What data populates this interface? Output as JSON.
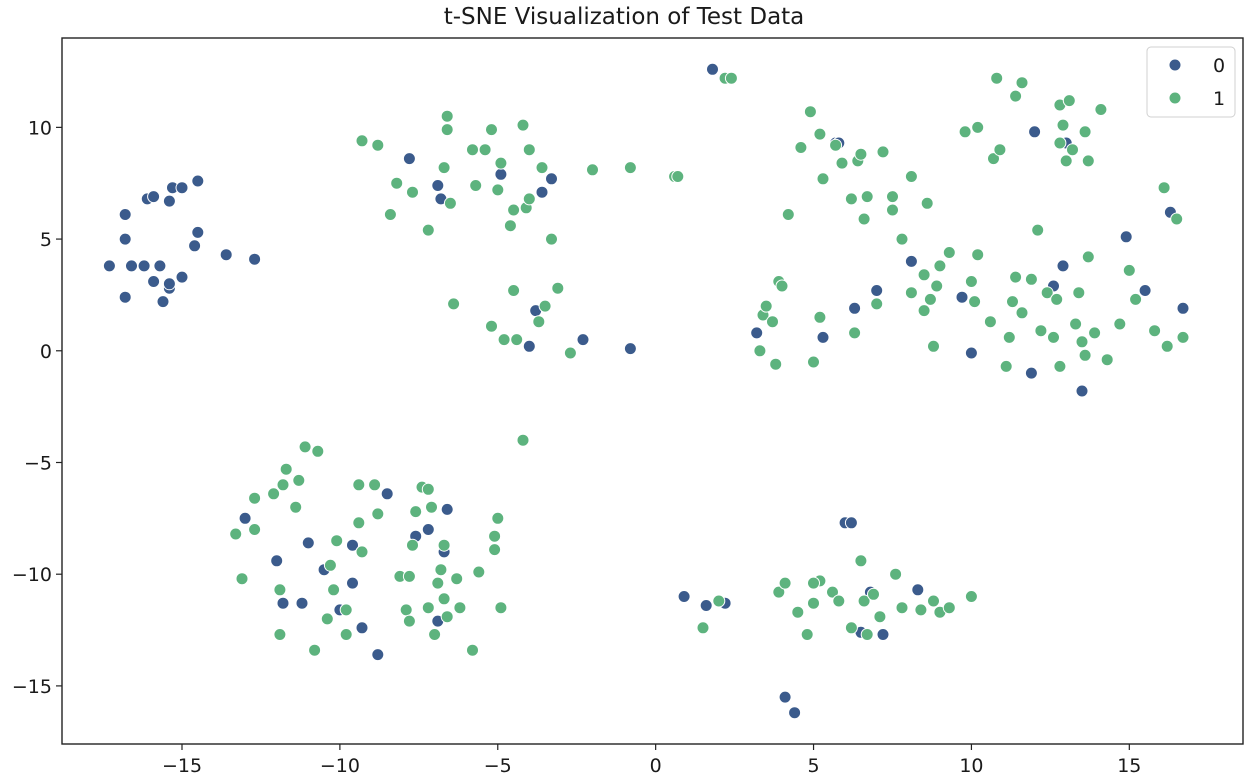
{
  "chart_data": {
    "type": "scatter",
    "title": "t-SNE Visualization of Test Data",
    "xlabel": "",
    "ylabel": "",
    "xlim": [
      -18.8,
      18.6
    ],
    "ylim": [
      -17.6,
      14.0
    ],
    "xticks": [
      -15,
      -10,
      -5,
      0,
      5,
      10,
      15
    ],
    "yticks": [
      -15,
      -10,
      -5,
      0,
      5,
      10
    ],
    "grid": false,
    "legend": {
      "position": "top-right",
      "entries": [
        "0",
        "1"
      ]
    },
    "colors": {
      "0": "#3b5b8c",
      "1": "#5db37e"
    },
    "series": [
      {
        "name": "0",
        "points": [
          [
            -17.3,
            3.8
          ],
          [
            -16.8,
            6.1
          ],
          [
            -16.8,
            5.0
          ],
          [
            -16.8,
            2.4
          ],
          [
            -16.6,
            3.8
          ],
          [
            -16.2,
            3.8
          ],
          [
            -16.1,
            6.8
          ],
          [
            -15.9,
            6.9
          ],
          [
            -15.7,
            3.8
          ],
          [
            -15.9,
            3.1
          ],
          [
            -15.6,
            2.2
          ],
          [
            -15.4,
            2.8
          ],
          [
            -15.4,
            3.0
          ],
          [
            -15.4,
            6.7
          ],
          [
            -15.3,
            7.3
          ],
          [
            -15.0,
            7.3
          ],
          [
            -15.0,
            3.3
          ],
          [
            -14.5,
            7.6
          ],
          [
            -14.6,
            4.7
          ],
          [
            -14.5,
            5.3
          ],
          [
            -13.6,
            4.3
          ],
          [
            -12.7,
            4.1
          ],
          [
            -7.8,
            8.6
          ],
          [
            -6.9,
            7.4
          ],
          [
            -6.8,
            6.8
          ],
          [
            -4.9,
            7.9
          ],
          [
            -3.6,
            7.1
          ],
          [
            -3.3,
            7.7
          ],
          [
            -3.8,
            1.8
          ],
          [
            -4.0,
            0.2
          ],
          [
            -2.3,
            0.5
          ],
          [
            -0.8,
            0.1
          ],
          [
            1.8,
            12.6
          ],
          [
            5.7,
            9.3
          ],
          [
            5.8,
            9.3
          ],
          [
            3.2,
            0.8
          ],
          [
            5.3,
            0.6
          ],
          [
            6.3,
            1.9
          ],
          [
            7.0,
            2.7
          ],
          [
            8.1,
            4.0
          ],
          [
            9.7,
            2.4
          ],
          [
            10.0,
            -0.1
          ],
          [
            11.9,
            -1.0
          ],
          [
            12.0,
            9.8
          ],
          [
            13.0,
            9.3
          ],
          [
            12.6,
            2.9
          ],
          [
            12.9,
            3.8
          ],
          [
            13.5,
            -1.8
          ],
          [
            14.9,
            5.1
          ],
          [
            15.5,
            2.7
          ],
          [
            16.3,
            6.2
          ],
          [
            16.7,
            1.9
          ],
          [
            -13.0,
            -7.5
          ],
          [
            -12.0,
            -9.4
          ],
          [
            -11.8,
            -11.3
          ],
          [
            -11.2,
            -11.3
          ],
          [
            -11.0,
            -8.6
          ],
          [
            -10.5,
            -9.8
          ],
          [
            -10.0,
            -11.6
          ],
          [
            -9.6,
            -10.4
          ],
          [
            -9.6,
            -8.7
          ],
          [
            -9.3,
            -12.4
          ],
          [
            -8.8,
            -13.6
          ],
          [
            -8.5,
            -6.4
          ],
          [
            -7.6,
            -8.3
          ],
          [
            -7.2,
            -8.0
          ],
          [
            -6.9,
            -12.1
          ],
          [
            -6.7,
            -9.0
          ],
          [
            -6.6,
            -7.1
          ],
          [
            0.9,
            -11.0
          ],
          [
            1.6,
            -11.4
          ],
          [
            2.2,
            -11.3
          ],
          [
            4.1,
            -15.5
          ],
          [
            4.4,
            -16.2
          ],
          [
            6.0,
            -7.7
          ],
          [
            6.2,
            -7.7
          ],
          [
            6.5,
            -12.6
          ],
          [
            6.8,
            -10.8
          ],
          [
            7.2,
            -12.7
          ],
          [
            8.3,
            -10.7
          ]
        ]
      },
      {
        "name": "1",
        "points": [
          [
            -9.3,
            9.4
          ],
          [
            -8.8,
            9.2
          ],
          [
            -8.2,
            7.5
          ],
          [
            -8.4,
            6.1
          ],
          [
            -7.7,
            7.1
          ],
          [
            -7.2,
            5.4
          ],
          [
            -6.7,
            8.2
          ],
          [
            -6.6,
            10.5
          ],
          [
            -6.6,
            9.9
          ],
          [
            -6.5,
            6.6
          ],
          [
            -5.8,
            9.0
          ],
          [
            -5.7,
            7.4
          ],
          [
            -5.4,
            9.0
          ],
          [
            -5.2,
            9.9
          ],
          [
            -4.9,
            8.4
          ],
          [
            -5.0,
            7.2
          ],
          [
            -4.6,
            5.6
          ],
          [
            -4.5,
            6.3
          ],
          [
            -4.2,
            10.1
          ],
          [
            -4.1,
            6.4
          ],
          [
            -4.0,
            9.0
          ],
          [
            -4.0,
            6.8
          ],
          [
            -3.6,
            8.2
          ],
          [
            -3.3,
            5.0
          ],
          [
            -2.0,
            8.1
          ],
          [
            -0.8,
            8.2
          ],
          [
            0.6,
            7.8
          ],
          [
            0.7,
            7.8
          ],
          [
            2.2,
            12.2
          ],
          [
            2.4,
            12.2
          ],
          [
            -6.4,
            2.1
          ],
          [
            -5.2,
            1.1
          ],
          [
            -4.8,
            0.5
          ],
          [
            -4.4,
            0.5
          ],
          [
            -4.5,
            2.7
          ],
          [
            -3.7,
            1.3
          ],
          [
            -3.5,
            2.0
          ],
          [
            -3.1,
            2.8
          ],
          [
            -2.7,
            -0.1
          ],
          [
            -4.2,
            -4.0
          ],
          [
            -11.1,
            -4.3
          ],
          [
            -10.7,
            -4.5
          ],
          [
            -11.7,
            -5.3
          ],
          [
            -11.3,
            -5.8
          ],
          [
            -12.7,
            -6.6
          ],
          [
            -12.1,
            -6.4
          ],
          [
            -11.8,
            -6.0
          ],
          [
            -11.4,
            -7.0
          ],
          [
            -13.3,
            -8.2
          ],
          [
            -12.7,
            -8.0
          ],
          [
            -13.1,
            -10.2
          ],
          [
            -11.9,
            -10.7
          ],
          [
            -11.9,
            -12.7
          ],
          [
            -10.8,
            -13.4
          ],
          [
            -10.3,
            -9.6
          ],
          [
            -10.2,
            -10.7
          ],
          [
            -10.1,
            -8.5
          ],
          [
            -10.4,
            -12.0
          ],
          [
            -9.8,
            -11.6
          ],
          [
            -9.8,
            -12.7
          ],
          [
            -9.4,
            -6.0
          ],
          [
            -9.4,
            -7.7
          ],
          [
            -9.3,
            -9.0
          ],
          [
            -8.9,
            -6.0
          ],
          [
            -8.8,
            -7.3
          ],
          [
            -8.1,
            -10.1
          ],
          [
            -7.9,
            -11.6
          ],
          [
            -7.8,
            -12.1
          ],
          [
            -7.8,
            -10.1
          ],
          [
            -7.7,
            -8.7
          ],
          [
            -7.6,
            -7.2
          ],
          [
            -7.4,
            -6.1
          ],
          [
            -7.2,
            -6.2
          ],
          [
            -7.1,
            -7.0
          ],
          [
            -7.2,
            -11.5
          ],
          [
            -7.0,
            -12.7
          ],
          [
            -6.9,
            -10.4
          ],
          [
            -6.8,
            -9.8
          ],
          [
            -6.7,
            -8.7
          ],
          [
            -6.7,
            -11.1
          ],
          [
            -6.6,
            -11.9
          ],
          [
            -6.3,
            -10.2
          ],
          [
            -6.2,
            -11.5
          ],
          [
            -5.8,
            -13.4
          ],
          [
            -5.6,
            -9.9
          ],
          [
            -5.1,
            -8.9
          ],
          [
            -5.1,
            -8.3
          ],
          [
            -5.0,
            -7.5
          ],
          [
            -4.9,
            -11.5
          ],
          [
            4.2,
            6.1
          ],
          [
            4.6,
            9.1
          ],
          [
            4.9,
            10.7
          ],
          [
            5.2,
            9.7
          ],
          [
            5.3,
            7.7
          ],
          [
            5.7,
            9.2
          ],
          [
            5.9,
            8.4
          ],
          [
            6.2,
            6.8
          ],
          [
            6.4,
            8.5
          ],
          [
            6.5,
            8.8
          ],
          [
            6.6,
            5.9
          ],
          [
            6.7,
            6.9
          ],
          [
            7.0,
            2.1
          ],
          [
            7.2,
            8.9
          ],
          [
            7.5,
            6.3
          ],
          [
            7.5,
            6.9
          ],
          [
            7.8,
            5.0
          ],
          [
            8.1,
            7.8
          ],
          [
            8.1,
            2.6
          ],
          [
            8.5,
            3.4
          ],
          [
            8.5,
            1.8
          ],
          [
            8.6,
            6.6
          ],
          [
            8.7,
            2.3
          ],
          [
            8.8,
            0.2
          ],
          [
            8.9,
            2.9
          ],
          [
            9.0,
            3.8
          ],
          [
            9.3,
            4.4
          ],
          [
            9.8,
            9.8
          ],
          [
            10.0,
            3.1
          ],
          [
            10.1,
            2.2
          ],
          [
            10.2,
            10.0
          ],
          [
            10.2,
            4.3
          ],
          [
            10.6,
            1.3
          ],
          [
            10.7,
            8.6
          ],
          [
            10.8,
            12.2
          ],
          [
            10.9,
            9.0
          ],
          [
            11.1,
            -0.7
          ],
          [
            11.2,
            0.6
          ],
          [
            11.3,
            2.2
          ],
          [
            11.4,
            11.4
          ],
          [
            11.4,
            3.3
          ],
          [
            11.6,
            12.0
          ],
          [
            11.6,
            1.7
          ],
          [
            11.9,
            3.2
          ],
          [
            12.1,
            5.4
          ],
          [
            12.2,
            0.9
          ],
          [
            12.4,
            2.6
          ],
          [
            12.6,
            0.6
          ],
          [
            12.7,
            2.3
          ],
          [
            12.8,
            -0.7
          ],
          [
            12.8,
            9.3
          ],
          [
            12.8,
            11.0
          ],
          [
            12.9,
            10.1
          ],
          [
            13.0,
            8.5
          ],
          [
            13.1,
            11.2
          ],
          [
            13.2,
            9.0
          ],
          [
            13.3,
            1.2
          ],
          [
            13.4,
            2.6
          ],
          [
            13.5,
            0.4
          ],
          [
            13.6,
            -0.2
          ],
          [
            13.6,
            9.8
          ],
          [
            13.7,
            8.5
          ],
          [
            13.7,
            4.2
          ],
          [
            14.1,
            10.8
          ],
          [
            14.3,
            -0.4
          ],
          [
            13.9,
            0.8
          ],
          [
            14.7,
            1.2
          ],
          [
            15.0,
            3.6
          ],
          [
            15.2,
            2.3
          ],
          [
            15.8,
            0.9
          ],
          [
            16.1,
            7.3
          ],
          [
            16.2,
            0.2
          ],
          [
            16.5,
            5.9
          ],
          [
            16.7,
            0.6
          ],
          [
            3.3,
            0.0
          ],
          [
            3.4,
            1.6
          ],
          [
            3.5,
            2.0
          ],
          [
            3.7,
            1.3
          ],
          [
            3.8,
            -0.6
          ],
          [
            3.9,
            3.1
          ],
          [
            4.0,
            2.9
          ],
          [
            5.0,
            -0.5
          ],
          [
            5.2,
            1.5
          ],
          [
            6.3,
            0.8
          ],
          [
            1.5,
            -12.4
          ],
          [
            2.0,
            -11.2
          ],
          [
            3.9,
            -10.8
          ],
          [
            4.1,
            -10.4
          ],
          [
            4.5,
            -11.7
          ],
          [
            4.8,
            -12.7
          ],
          [
            5.0,
            -11.3
          ],
          [
            5.2,
            -10.3
          ],
          [
            5.0,
            -10.4
          ],
          [
            5.6,
            -10.8
          ],
          [
            5.8,
            -11.2
          ],
          [
            6.2,
            -12.4
          ],
          [
            6.5,
            -9.4
          ],
          [
            6.6,
            -11.2
          ],
          [
            6.7,
            -12.7
          ],
          [
            6.9,
            -10.9
          ],
          [
            7.1,
            -11.9
          ],
          [
            7.6,
            -10.0
          ],
          [
            7.8,
            -11.5
          ],
          [
            8.4,
            -11.6
          ],
          [
            8.8,
            -11.2
          ],
          [
            9.0,
            -11.7
          ],
          [
            9.3,
            -11.5
          ],
          [
            10.0,
            -11.0
          ]
        ]
      }
    ]
  }
}
